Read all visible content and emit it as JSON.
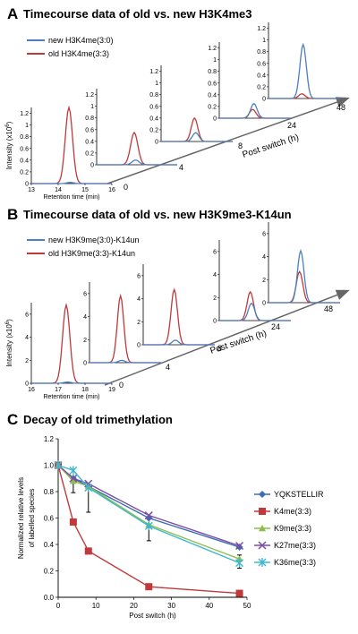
{
  "panelA": {
    "letter": "A",
    "title": "Timecourse data of old vs. new H3K4me3",
    "legend": [
      "new H3K4me(3:0)",
      "old H3K4me(3:3)"
    ],
    "colors": {
      "new": "#4a7fc1",
      "old": "#c0393b"
    },
    "ylabel": "Intensity (x10",
    "ylabel_exp": "6",
    "ylabel_end": ")",
    "xlabel": "Retention time (min)",
    "x_ticks": [
      "13",
      "14",
      "15",
      "16"
    ],
    "y_ticks": [
      "0",
      "0.2",
      "0.4",
      "0.6",
      "0.8",
      "1",
      "1.2"
    ],
    "timepoints": [
      "0",
      "4",
      "8",
      "24",
      "48"
    ],
    "post_switch": "Post switch (h)"
  },
  "panelB": {
    "letter": "B",
    "title": "Timecourse data of old vs. new H3K9me3-K14un",
    "legend": [
      "new H3K9me(3:0)-K14un",
      "old H3K9me(3:3)-K14un"
    ],
    "ylabel": "Intensity (x10",
    "ylabel_exp": "6",
    "ylabel_end": ")",
    "xlabel": "Retention time (min)",
    "x_ticks": [
      "16",
      "17",
      "18",
      "19"
    ],
    "y_ticks": [
      "0",
      "2",
      "4",
      "6"
    ],
    "timepoints": [
      "0",
      "4",
      "8",
      "24",
      "48"
    ],
    "post_switch": "Post switch (h)"
  },
  "panelC": {
    "letter": "C",
    "title": "Decay of old trimethylation"
  },
  "chart_data": [
    {
      "type": "line",
      "panel": "A",
      "title": "Timecourse data of old vs. new H3K4me3",
      "xlabel": "Retention time (min)",
      "ylabel": "Intensity (x10^6)",
      "xlim": [
        13,
        16
      ],
      "ylim": [
        0,
        1.3
      ],
      "timepoints_h": [
        0,
        4,
        8,
        24,
        48
      ],
      "peak_rt": 14.4,
      "series": [
        {
          "name": "new H3K4me(3:0)",
          "peak_heights": [
            0.02,
            0.08,
            0.15,
            0.25,
            0.92
          ]
        },
        {
          "name": "old H3K4me(3:3)",
          "peak_heights": [
            1.3,
            0.55,
            0.4,
            0.15,
            0.08
          ]
        }
      ]
    },
    {
      "type": "line",
      "panel": "B",
      "title": "Timecourse data of old vs. new H3K9me3-K14un",
      "xlabel": "Retention time (min)",
      "ylabel": "Intensity (x10^6)",
      "xlim": [
        16,
        19
      ],
      "ylim": [
        0,
        7
      ],
      "timepoints_h": [
        0,
        4,
        8,
        24,
        48
      ],
      "peak_rt": 17.3,
      "series": [
        {
          "name": "new H3K9me(3:0)-K14un",
          "peak_heights": [
            0.1,
            0.2,
            0.4,
            1.5,
            4.5
          ]
        },
        {
          "name": "old H3K9me(3:3)-K14un",
          "peak_heights": [
            6.8,
            5.8,
            4.8,
            2.5,
            2.7
          ]
        }
      ]
    },
    {
      "type": "line",
      "panel": "C",
      "title": "Decay of old trimethylation",
      "xlabel": "Post switch (h)",
      "ylabel": "Normalized relative levels of labelled species",
      "xlim": [
        0,
        50
      ],
      "ylim": [
        0,
        1.2
      ],
      "x_ticks": [
        0,
        10,
        20,
        30,
        40,
        50
      ],
      "y_ticks": [
        "0.0",
        "0.2",
        "0.4",
        "0.6",
        "0.8",
        "1.0",
        "1.2"
      ],
      "x": [
        0,
        4,
        8,
        24,
        48
      ],
      "series": [
        {
          "name": "YQKSTELLIR",
          "color": "#3b6db3",
          "marker": "diamond",
          "values": [
            1.0,
            0.9,
            0.84,
            0.6,
            0.38
          ]
        },
        {
          "name": "K4me(3:3)",
          "color": "#c0393b",
          "marker": "square",
          "values": [
            1.0,
            0.57,
            0.35,
            0.08,
            0.03
          ]
        },
        {
          "name": "K9me(3:3)",
          "color": "#8dbd4a",
          "marker": "triangle",
          "values": [
            1.0,
            0.88,
            0.84,
            0.55,
            0.29
          ]
        },
        {
          "name": "K27me(3:3)",
          "color": "#7a4ea1",
          "marker": "x",
          "values": [
            1.0,
            0.9,
            0.86,
            0.62,
            0.39
          ]
        },
        {
          "name": "K36me(3:3)",
          "color": "#3fb7d1",
          "marker": "asterisk",
          "values": [
            1.0,
            0.96,
            0.83,
            0.54,
            0.26
          ]
        }
      ],
      "error": [
        0,
        0.05,
        0.1,
        0.05,
        0.05
      ]
    }
  ]
}
